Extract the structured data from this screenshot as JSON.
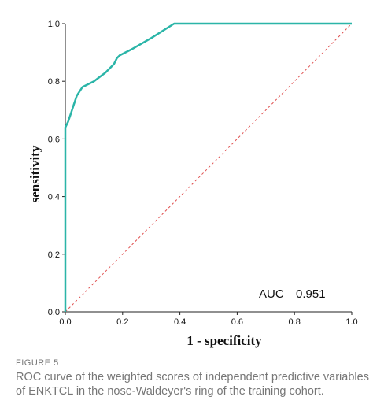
{
  "chart_data": {
    "type": "line",
    "title": "",
    "xlabel": "1 - specificity",
    "ylabel": "sensitivity",
    "xlim": [
      0,
      1
    ],
    "ylim": [
      0,
      1
    ],
    "x_ticks": [
      "0.0",
      "0.2",
      "0.4",
      "0.6",
      "0.8",
      "1.0"
    ],
    "y_ticks": [
      "0.0",
      "0.2",
      "0.4",
      "0.6",
      "0.8",
      "1.0"
    ],
    "grid": false,
    "series": [
      {
        "name": "",
        "color": "#2bb5a8",
        "points": [
          [
            0.0,
            0.0
          ],
          [
            0.0,
            0.64
          ],
          [
            0.01,
            0.66
          ],
          [
            0.02,
            0.69
          ],
          [
            0.03,
            0.72
          ],
          [
            0.04,
            0.75
          ],
          [
            0.06,
            0.78
          ],
          [
            0.1,
            0.8
          ],
          [
            0.14,
            0.83
          ],
          [
            0.17,
            0.86
          ],
          [
            0.18,
            0.88
          ],
          [
            0.19,
            0.89
          ],
          [
            0.23,
            0.91
          ],
          [
            0.3,
            0.95
          ],
          [
            0.38,
            1.0
          ],
          [
            1.0,
            1.0
          ]
        ]
      }
    ],
    "reference_line": {
      "style": "dashed",
      "color": "#e05050",
      "points": [
        [
          0,
          0
        ],
        [
          1,
          1
        ]
      ]
    },
    "annotation": {
      "label": "AUC",
      "value": "0.951"
    }
  },
  "caption": {
    "label": "FIGURE 5",
    "text": "ROC curve of the weighted scores of independent predictive variables of ENKTCL in the nose-Waldeyer's ring of the training cohort."
  }
}
